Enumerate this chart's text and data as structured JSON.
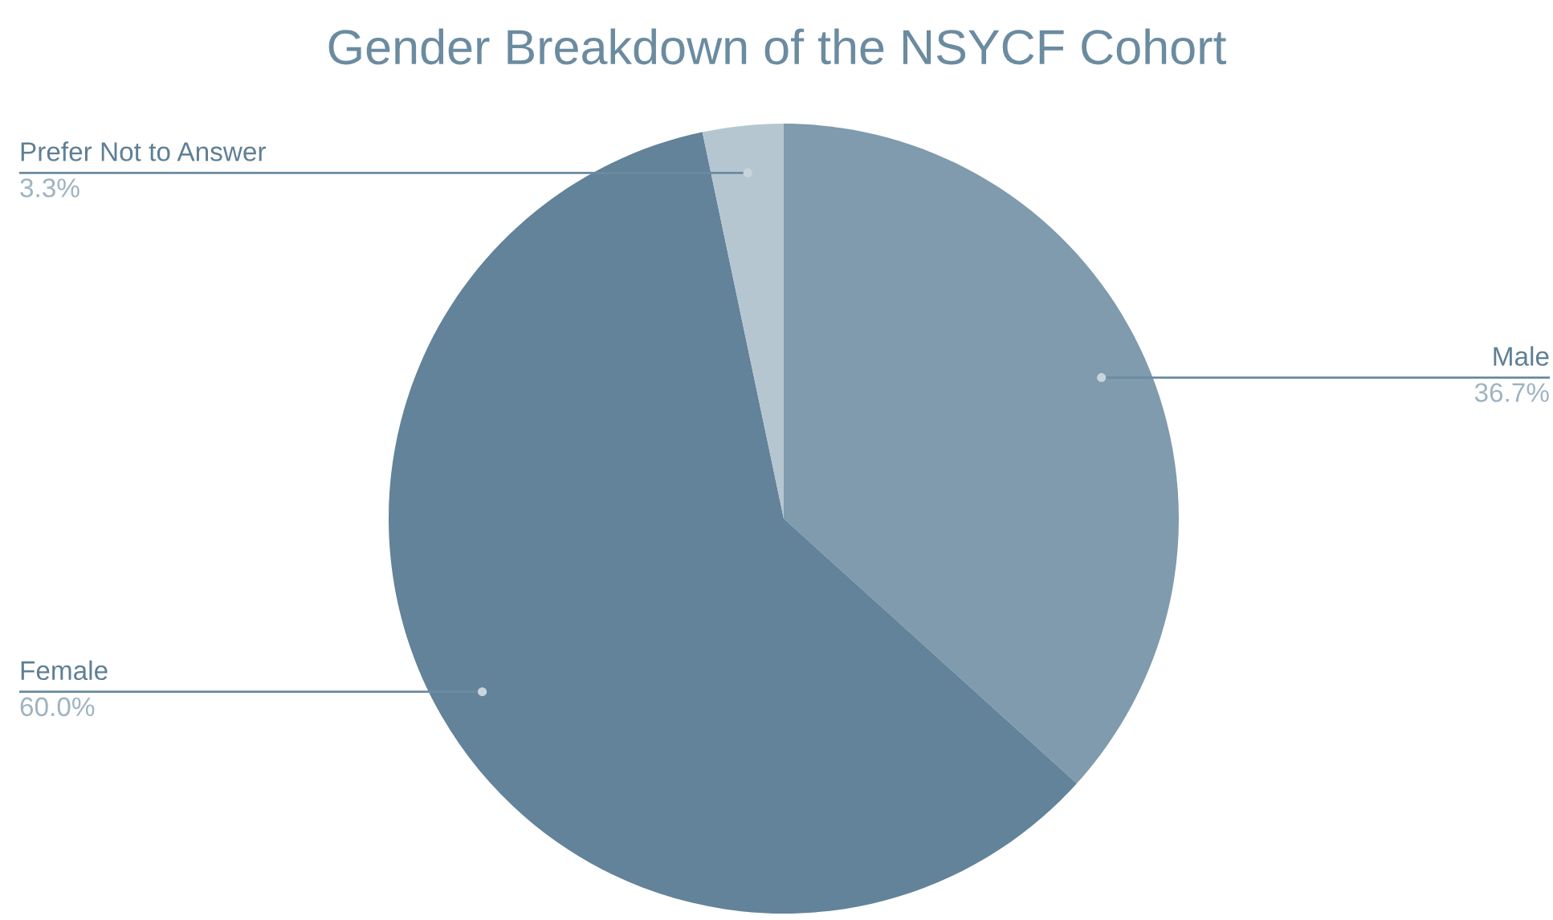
{
  "chart_data": {
    "type": "pie",
    "title": "Gender Breakdown of the NSYCF Cohort",
    "categories": [
      "Male",
      "Female",
      "Prefer Not to Answer"
    ],
    "values": [
      36.7,
      60.0,
      3.3
    ],
    "value_labels": [
      "36.7%",
      "60.0%",
      "3.3%"
    ],
    "colors": [
      "#7f9bad",
      "#628399",
      "#b6c6d1"
    ],
    "legend": false
  }
}
